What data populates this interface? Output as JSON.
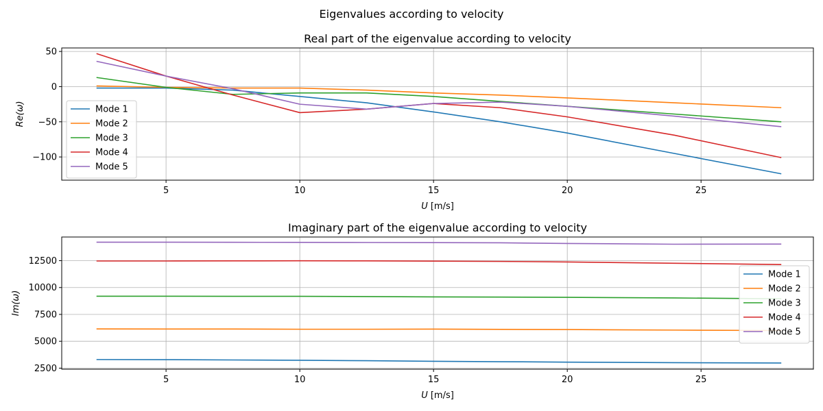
{
  "figure_title": "Eigenvalues according to velocity",
  "colors": {
    "Mode 1": "#1f77b4",
    "Mode 2": "#ff7f0e",
    "Mode 3": "#2ca02c",
    "Mode 4": "#d62728",
    "Mode 5": "#9467bd"
  },
  "chart_data": [
    {
      "type": "line",
      "title": "Real part of the eigenvalue according to velocity",
      "xlabel": "U [m/s]",
      "ylabel": "Re(ω)",
      "xlim": [
        1.1,
        29.2
      ],
      "ylim": [
        -133,
        55
      ],
      "xticks": [
        5,
        10,
        15,
        20,
        25
      ],
      "yticks": [
        50,
        0,
        -50,
        -100
      ],
      "ytick_labels": [
        "50",
        "0",
        "−50",
        "−100"
      ],
      "grid": true,
      "legend_position": "center-left",
      "x": [
        2.4,
        5.0,
        7.5,
        10.0,
        12.5,
        15.0,
        17.5,
        20.0,
        24.0,
        28.0
      ],
      "series": [
        {
          "name": "Mode 1",
          "values": [
            -2,
            -2,
            -5,
            -14,
            -23,
            -36,
            -50,
            -66,
            -95,
            -124
          ]
        },
        {
          "name": "Mode 2",
          "values": [
            1,
            -1,
            -2,
            -2,
            -5,
            -9,
            -12,
            -16,
            -23,
            -30
          ]
        },
        {
          "name": "Mode 3",
          "values": [
            13,
            -1,
            -11,
            -9,
            -9,
            -14,
            -21,
            -28,
            -39,
            -50
          ]
        },
        {
          "name": "Mode 4",
          "values": [
            47,
            15,
            -12,
            -37,
            -32,
            -24,
            -30,
            -43,
            -69,
            -101
          ]
        },
        {
          "name": "Mode 5",
          "values": [
            36,
            15,
            -3,
            -25,
            -32,
            -24,
            -22,
            -28,
            -42,
            -57
          ]
        }
      ]
    },
    {
      "type": "line",
      "title": "Imaginary part of the eigenvalue according to velocity",
      "xlabel": "U [m/s]",
      "ylabel": "Im(ω)",
      "xlim": [
        1.1,
        29.2
      ],
      "ylim": [
        2400,
        14700
      ],
      "xticks": [
        5,
        10,
        15,
        20,
        25
      ],
      "yticks": [
        2500,
        5000,
        7500,
        10000,
        12500
      ],
      "ytick_labels": [
        "2500",
        "5000",
        "7500",
        "10000",
        "12500"
      ],
      "grid": true,
      "legend_position": "right",
      "x": [
        2.4,
        5.0,
        7.5,
        10.0,
        12.5,
        15.0,
        17.5,
        20.0,
        24.0,
        28.0
      ],
      "series": [
        {
          "name": "Mode 1",
          "values": [
            3300,
            3290,
            3260,
            3230,
            3190,
            3140,
            3100,
            3060,
            3010,
            2980
          ]
        },
        {
          "name": "Mode 2",
          "values": [
            6150,
            6140,
            6140,
            6120,
            6120,
            6130,
            6110,
            6090,
            6040,
            6000
          ]
        },
        {
          "name": "Mode 3",
          "values": [
            9190,
            9190,
            9180,
            9180,
            9160,
            9130,
            9110,
            9090,
            9030,
            8950
          ]
        },
        {
          "name": "Mode 4",
          "values": [
            12470,
            12470,
            12480,
            12490,
            12480,
            12460,
            12430,
            12380,
            12260,
            12140
          ]
        },
        {
          "name": "Mode 5",
          "values": [
            14220,
            14220,
            14210,
            14200,
            14190,
            14180,
            14160,
            14100,
            14030,
            14040
          ]
        }
      ]
    }
  ]
}
